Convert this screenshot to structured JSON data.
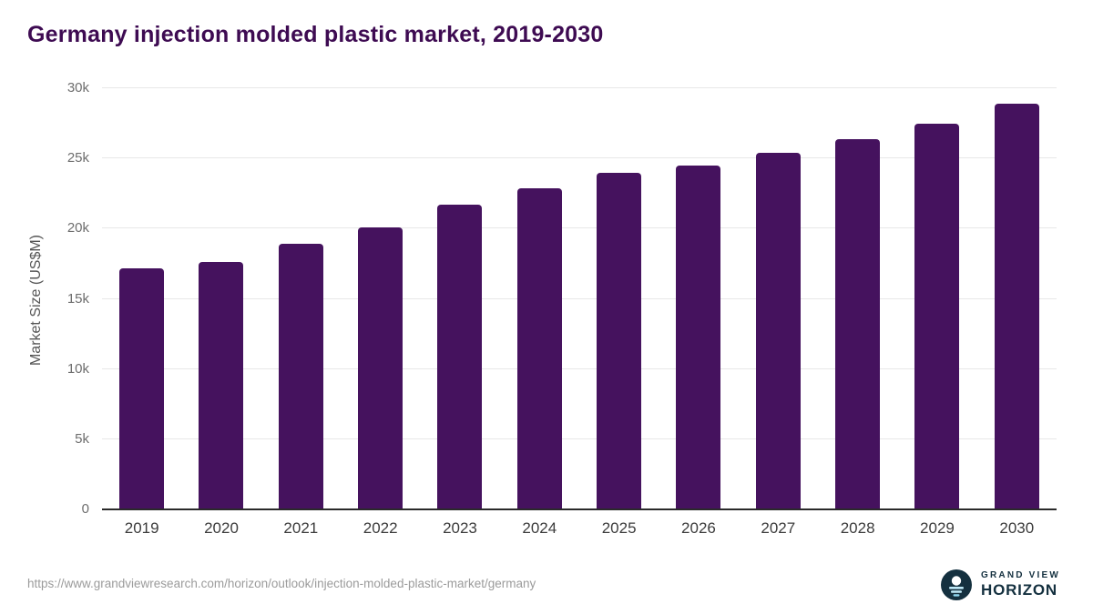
{
  "chart": {
    "title": "Germany injection molded plastic market, 2019-2030",
    "ylabel": "Market Size (US$M)"
  },
  "chart_data": {
    "type": "bar",
    "title": "Germany injection molded plastic market, 2019-2030",
    "xlabel": "",
    "ylabel": "Market Size (US$M)",
    "categories": [
      "2019",
      "2020",
      "2021",
      "2022",
      "2023",
      "2024",
      "2025",
      "2026",
      "2027",
      "2028",
      "2029",
      "2030"
    ],
    "values": [
      17200,
      17600,
      18900,
      20100,
      21700,
      22900,
      24000,
      24500,
      25400,
      26400,
      27500,
      28900
    ],
    "ylim": [
      0,
      30000
    ],
    "yticks": [
      0,
      5000,
      10000,
      15000,
      20000,
      25000,
      30000
    ],
    "ytick_labels": [
      "0",
      "5k",
      "10k",
      "15k",
      "20k",
      "25k",
      "30k"
    ],
    "bar_color": "#45125e",
    "grid": true,
    "legend": false
  },
  "footer": {
    "source_url": "https://www.grandviewresearch.com/horizon/outlook/injection-molded-plastic-market/germany",
    "logo": {
      "top": "GRAND VIEW",
      "bottom": "HORIZON"
    }
  },
  "colors": {
    "title": "#3e0b52",
    "logo_navy": "#14303f",
    "logo_blue": "#bfe9f7"
  }
}
